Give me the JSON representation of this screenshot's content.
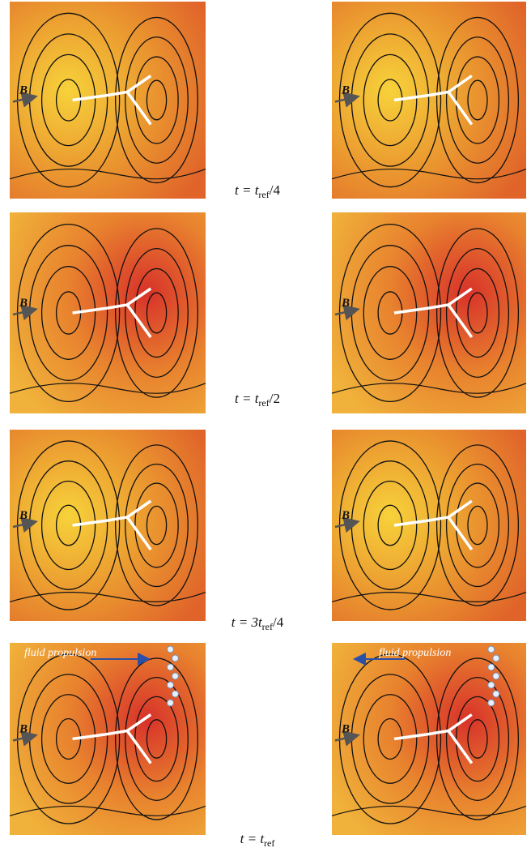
{
  "figure": {
    "panels": [
      {
        "label": "B"
      },
      {
        "label": "B"
      },
      {
        "label": "B"
      },
      {
        "label": "B"
      },
      {
        "label": "B"
      },
      {
        "label": "B"
      },
      {
        "label": "B",
        "annotation": "fluid propulsion"
      },
      {
        "label": "B",
        "annotation": "fluid propulsion"
      }
    ],
    "captions": [
      [
        "t = t",
        "ref",
        "/4"
      ],
      [
        "t = t",
        "ref",
        "/2"
      ],
      [
        "t = 3t",
        "ref",
        "/4"
      ],
      [
        "t = t",
        "ref"
      ]
    ]
  }
}
